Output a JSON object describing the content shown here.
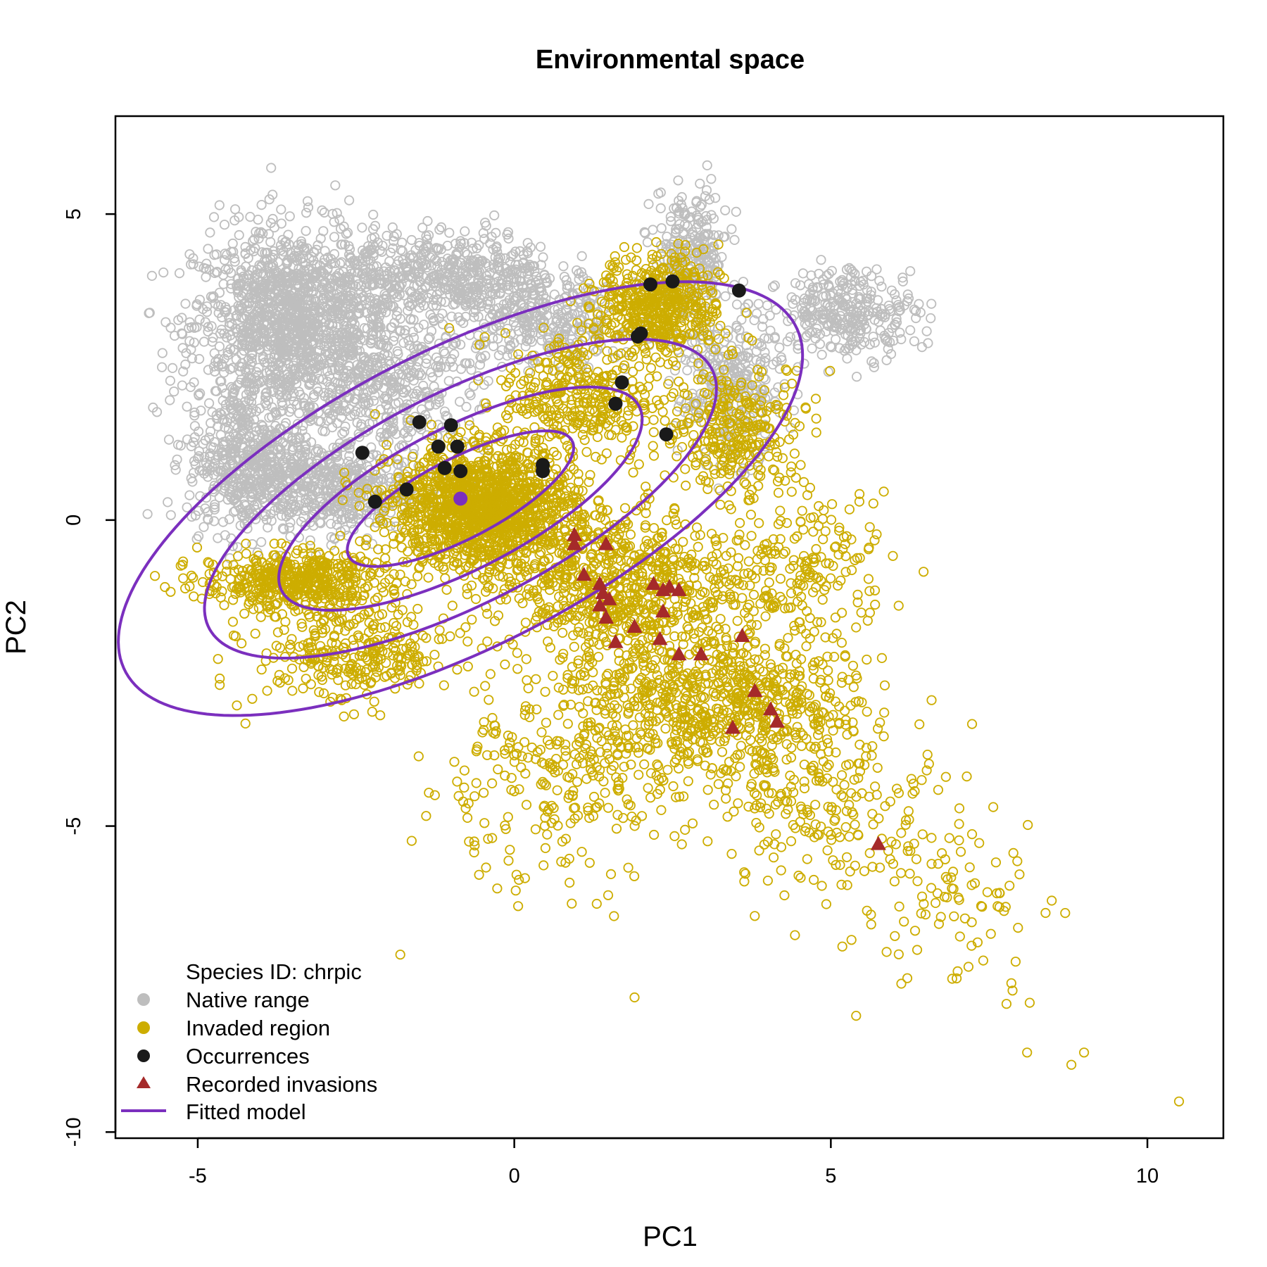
{
  "chart_data": {
    "type": "scatter",
    "title": "Environmental space",
    "xlabel": "PC1",
    "ylabel": "PC2",
    "xlim": [
      -6.3,
      11.2
    ],
    "ylim": [
      -10.1,
      6.6
    ],
    "xticks": [
      -5,
      0,
      5,
      10
    ],
    "yticks": [
      -10,
      -5,
      0,
      5
    ],
    "xtick_labels": [
      "-5",
      "0",
      "5",
      "10"
    ],
    "ytick_labels": [
      "-10",
      "-5",
      "0",
      "5"
    ],
    "grid": false,
    "legend": {
      "placement": "bottom-left",
      "header": "Species ID: chrpic",
      "entries": [
        {
          "label": "Native range",
          "marker": "circle",
          "color": "#bebebe"
        },
        {
          "label": "Invaded region",
          "marker": "circle",
          "color": "#cdad00"
        },
        {
          "label": "Occurrences",
          "marker": "circle",
          "color": "#1a1a1a"
        },
        {
          "label": "Recorded invasions",
          "marker": "triangle",
          "color": "#a52a2a"
        },
        {
          "label": "Fitted model",
          "marker": "line",
          "color": "#7b2fbe"
        }
      ]
    },
    "colors": {
      "native": "#bebebe",
      "invaded": "#cdad00",
      "occurrences": "#1a1a1a",
      "invasions": "#a52a2a",
      "model": "#7b2fbe"
    },
    "occurrences": [
      [
        -2.4,
        1.1
      ],
      [
        -2.2,
        0.3
      ],
      [
        -1.7,
        0.5
      ],
      [
        -1.5,
        1.6
      ],
      [
        -1.2,
        1.2
      ],
      [
        -1.1,
        0.85
      ],
      [
        -1.0,
        1.55
      ],
      [
        -0.9,
        1.2
      ],
      [
        -0.85,
        0.8
      ],
      [
        0.45,
        0.9
      ],
      [
        0.45,
        0.8
      ],
      [
        1.6,
        1.9
      ],
      [
        1.7,
        2.25
      ],
      [
        1.95,
        3.0
      ],
      [
        2.0,
        3.05
      ],
      [
        2.15,
        3.85
      ],
      [
        2.4,
        1.4
      ],
      [
        2.5,
        3.9
      ],
      [
        3.55,
        3.75
      ]
    ],
    "invasions": [
      [
        0.95,
        -0.25
      ],
      [
        0.95,
        -0.4
      ],
      [
        1.45,
        -0.4
      ],
      [
        1.1,
        -0.9
      ],
      [
        1.35,
        -1.05
      ],
      [
        1.4,
        -1.2
      ],
      [
        1.35,
        -1.4
      ],
      [
        1.5,
        -1.3
      ],
      [
        1.45,
        -1.6
      ],
      [
        1.6,
        -2.0
      ],
      [
        1.9,
        -1.75
      ],
      [
        2.2,
        -1.05
      ],
      [
        2.35,
        -1.15
      ],
      [
        2.45,
        -1.1
      ],
      [
        2.6,
        -1.15
      ],
      [
        2.35,
        -1.5
      ],
      [
        2.3,
        -1.95
      ],
      [
        2.6,
        -2.2
      ],
      [
        2.95,
        -2.2
      ],
      [
        3.6,
        -1.9
      ],
      [
        3.8,
        -2.8
      ],
      [
        4.05,
        -3.1
      ],
      [
        4.15,
        -3.3
      ],
      [
        3.45,
        -3.4
      ],
      [
        5.75,
        -5.3
      ]
    ],
    "model": {
      "center": [
        -0.85,
        0.35
      ],
      "contours": [
        {
          "semi_axes": [
            2.0,
            0.65
          ],
          "angle_deg": 28.3
        },
        {
          "semi_axes": [
            3.2,
            1.15
          ],
          "angle_deg": 28.3
        },
        {
          "semi_axes": [
            4.5,
            1.7
          ],
          "angle_deg": 28.3
        },
        {
          "semi_axes": [
            6.0,
            2.4
          ],
          "angle_deg": 28.3
        }
      ]
    }
  }
}
